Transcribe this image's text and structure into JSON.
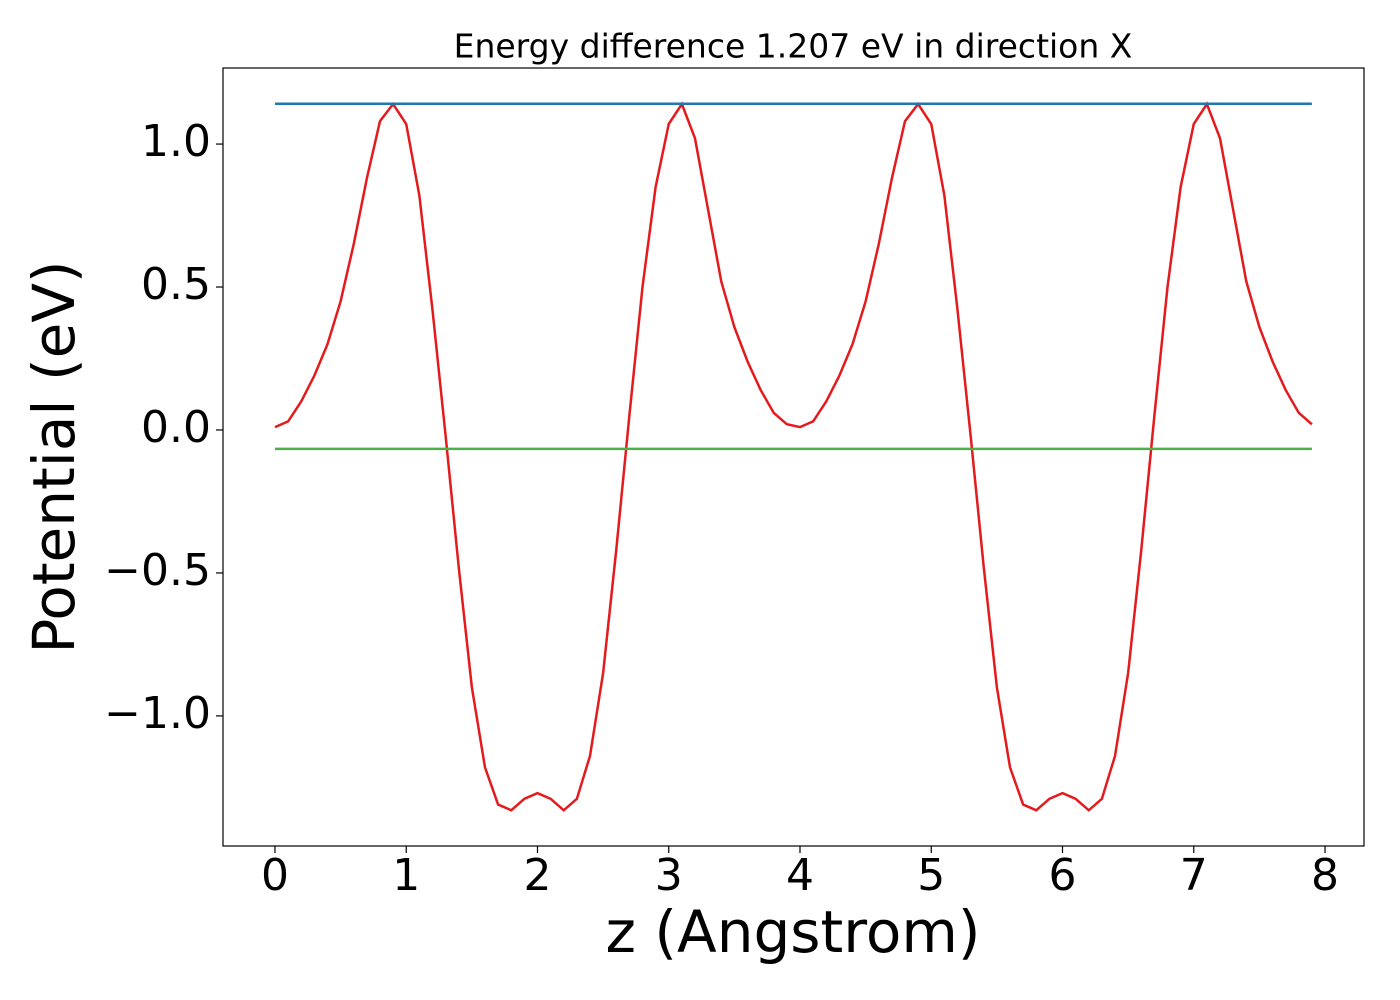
{
  "chart_data": {
    "type": "line",
    "title": "Energy difference 1.207 eV in direction X",
    "xlabel": "z (Angstrom)",
    "ylabel": "Potential (eV)",
    "xlim": [
      -0.396,
      8.297
    ],
    "ylim": [
      -1.455,
      1.266
    ],
    "xticks": [
      0,
      1,
      2,
      3,
      4,
      5,
      6,
      7,
      8
    ],
    "yticks": [
      {
        "value": -1.0,
        "label": "−1.0"
      },
      {
        "value": -0.5,
        "label": "−0.5"
      },
      {
        "value": 0.0,
        "label": "0.0"
      },
      0.5,
      {
        "value": 1.0,
        "label": "1.0"
      }
    ],
    "grid": false,
    "series": [
      {
        "color": "#e41a1c",
        "x": [
          0,
          0.1,
          0.2,
          0.3,
          0.4,
          0.5,
          0.6,
          0.7,
          0.8,
          0.9,
          1.0,
          1.1,
          1.2,
          1.3,
          1.4,
          1.5,
          1.6,
          1.7,
          1.8,
          1.9,
          2.0,
          2.1,
          2.2,
          2.3,
          2.4,
          2.5,
          2.6,
          2.7,
          2.8,
          2.9,
          3.0,
          3.1,
          3.2,
          3.3,
          3.4,
          3.5,
          3.6,
          3.7,
          3.8,
          3.9,
          4.0,
          4.1,
          4.2,
          4.3,
          4.4,
          4.5,
          4.6,
          4.7,
          4.8,
          4.9,
          5.0,
          5.1,
          5.2,
          5.3,
          5.4,
          5.5,
          5.6,
          5.7,
          5.8,
          5.9,
          6.0,
          6.1,
          6.2,
          6.3,
          6.4,
          6.5,
          6.6,
          6.7,
          6.8,
          6.9,
          7.0,
          7.1,
          7.2,
          7.3,
          7.4,
          7.5,
          7.6,
          7.7,
          7.8,
          7.9
        ],
        "values": [
          0.01,
          0.03,
          0.1,
          0.19,
          0.3,
          0.45,
          0.65,
          0.88,
          1.08,
          1.14,
          1.07,
          0.82,
          0.42,
          -0.02,
          -0.48,
          -0.9,
          -1.18,
          -1.31,
          -1.33,
          -1.29,
          -1.27,
          -1.29,
          -1.33,
          -1.29,
          -1.14,
          -0.85,
          -0.42,
          0.05,
          0.5,
          0.85,
          1.07,
          1.14,
          1.02,
          0.77,
          0.52,
          0.36,
          0.24,
          0.14,
          0.06,
          0.02,
          0.01,
          0.03,
          0.1,
          0.19,
          0.3,
          0.45,
          0.65,
          0.88,
          1.08,
          1.14,
          1.07,
          0.82,
          0.42,
          -0.02,
          -0.48,
          -0.9,
          -1.18,
          -1.31,
          -1.33,
          -1.29,
          -1.27,
          -1.29,
          -1.33,
          -1.29,
          -1.14,
          -0.85,
          -0.42,
          0.05,
          0.5,
          0.85,
          1.07,
          1.14,
          1.02,
          0.77,
          0.52,
          0.36,
          0.24,
          0.14,
          0.06,
          0.02
        ]
      },
      {
        "color": "#1f77b4",
        "x": [
          0,
          7.9
        ],
        "values": [
          1.141,
          1.141
        ]
      },
      {
        "color": "#4daf4a",
        "x": [
          0,
          7.9
        ],
        "values": [
          -0.066,
          -0.066
        ]
      }
    ]
  }
}
